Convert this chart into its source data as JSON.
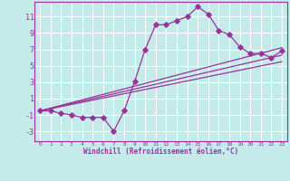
{
  "xlabel": "Windchill (Refroidissement éolien,°C)",
  "xlim": [
    -0.5,
    23.5
  ],
  "ylim": [
    -4.2,
    12.8
  ],
  "xticks": [
    0,
    1,
    2,
    3,
    4,
    5,
    6,
    7,
    8,
    9,
    10,
    11,
    12,
    13,
    14,
    15,
    16,
    17,
    18,
    19,
    20,
    21,
    22,
    23
  ],
  "yticks": [
    -3,
    -1,
    1,
    3,
    5,
    7,
    9,
    11
  ],
  "bg_color": "#c5eaea",
  "grid_color": "#ffffff",
  "line_color": "#993399",
  "curve_x": [
    0,
    1,
    2,
    3,
    4,
    5,
    6,
    7,
    8,
    9,
    10,
    11,
    12,
    13,
    14,
    15,
    16,
    17,
    18,
    19,
    20,
    21,
    22,
    23
  ],
  "curve_y": [
    -0.5,
    -0.5,
    -0.8,
    -1.0,
    -1.3,
    -1.3,
    -1.3,
    -3.0,
    -0.5,
    3.1,
    7.0,
    10.0,
    10.0,
    10.5,
    11.0,
    12.2,
    11.3,
    9.3,
    8.8,
    7.3,
    6.5,
    6.5,
    6.0,
    6.8
  ],
  "line1_x": [
    0,
    23
  ],
  "line1_y": [
    -0.5,
    7.2
  ],
  "line2_x": [
    0,
    23
  ],
  "line2_y": [
    -0.5,
    5.5
  ],
  "line3_x": [
    0,
    23
  ],
  "line3_y": [
    -0.5,
    6.3
  ],
  "marker_size": 2.8,
  "line_width": 0.9
}
